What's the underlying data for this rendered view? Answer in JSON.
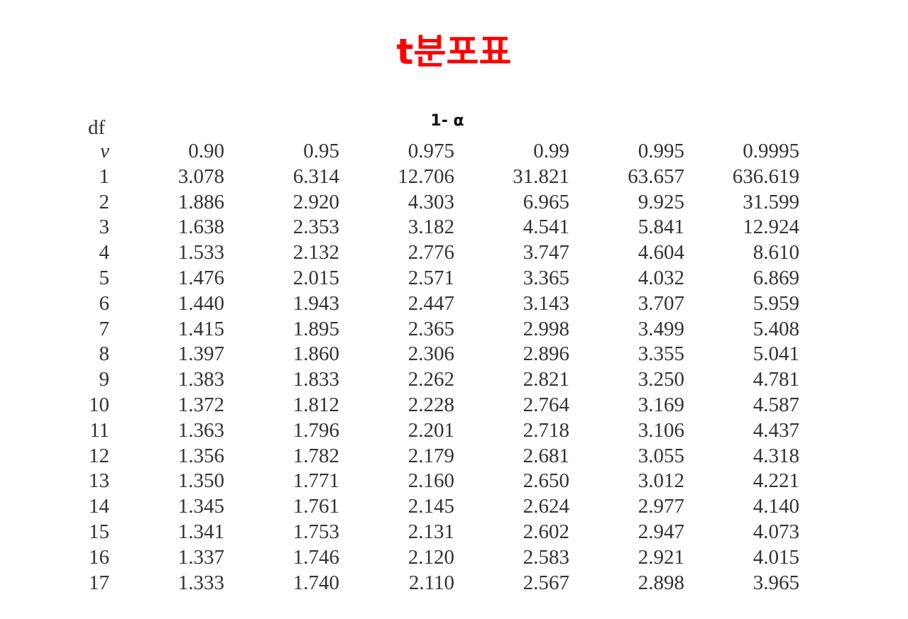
{
  "title": "t분포표",
  "alpha_header": "1- α",
  "df_label": "df",
  "nu_label": "ν",
  "columns": [
    "0.90",
    "0.95",
    "0.975",
    "0.99",
    "0.995",
    "0.9995"
  ],
  "rows": [
    {
      "df": "1",
      "values": [
        "3.078",
        "6.314",
        "12.706",
        "31.821",
        "63.657",
        "636.619"
      ]
    },
    {
      "df": "2",
      "values": [
        "1.886",
        "2.920",
        "4.303",
        "6.965",
        "9.925",
        "31.599"
      ]
    },
    {
      "df": "3",
      "values": [
        "1.638",
        "2.353",
        "3.182",
        "4.541",
        "5.841",
        "12.924"
      ]
    },
    {
      "df": "4",
      "values": [
        "1.533",
        "2.132",
        "2.776",
        "3.747",
        "4.604",
        "8.610"
      ]
    },
    {
      "df": "5",
      "values": [
        "1.476",
        "2.015",
        "2.571",
        "3.365",
        "4.032",
        "6.869"
      ]
    },
    {
      "df": "6",
      "values": [
        "1.440",
        "1.943",
        "2.447",
        "3.143",
        "3.707",
        "5.959"
      ]
    },
    {
      "df": "7",
      "values": [
        "1.415",
        "1.895",
        "2.365",
        "2.998",
        "3.499",
        "5.408"
      ]
    },
    {
      "df": "8",
      "values": [
        "1.397",
        "1.860",
        "2.306",
        "2.896",
        "3.355",
        "5.041"
      ]
    },
    {
      "df": "9",
      "values": [
        "1.383",
        "1.833",
        "2.262",
        "2.821",
        "3.250",
        "4.781"
      ]
    },
    {
      "df": "10",
      "values": [
        "1.372",
        "1.812",
        "2.228",
        "2.764",
        "3.169",
        "4.587"
      ]
    },
    {
      "df": "11",
      "values": [
        "1.363",
        "1.796",
        "2.201",
        "2.718",
        "3.106",
        "4.437"
      ]
    },
    {
      "df": "12",
      "values": [
        "1.356",
        "1.782",
        "2.179",
        "2.681",
        "3.055",
        "4.318"
      ]
    },
    {
      "df": "13",
      "values": [
        "1.350",
        "1.771",
        "2.160",
        "2.650",
        "3.012",
        "4.221"
      ]
    },
    {
      "df": "14",
      "values": [
        "1.345",
        "1.761",
        "2.145",
        "2.624",
        "2.977",
        "4.140"
      ]
    },
    {
      "df": "15",
      "values": [
        "1.341",
        "1.753",
        "2.131",
        "2.602",
        "2.947",
        "4.073"
      ]
    },
    {
      "df": "16",
      "values": [
        "1.337",
        "1.746",
        "2.120",
        "2.583",
        "2.921",
        "4.015"
      ]
    },
    {
      "df": "17",
      "values": [
        "1.333",
        "1.740",
        "2.110",
        "2.567",
        "2.898",
        "3.965"
      ]
    }
  ],
  "colors": {
    "title": "#ff0000",
    "text": "#333333"
  }
}
